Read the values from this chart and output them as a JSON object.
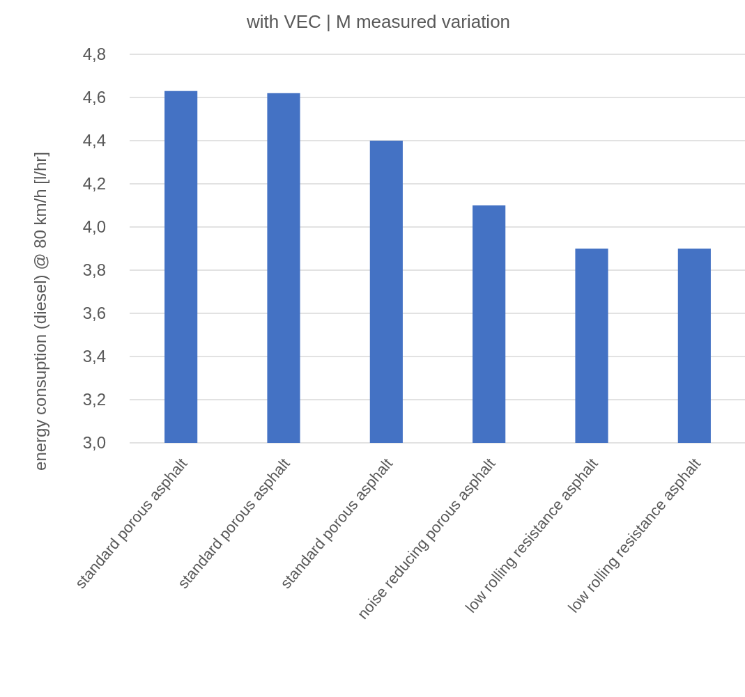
{
  "chart_data": {
    "type": "bar",
    "title": "with VEC | M measured variation",
    "ylabel": "energy consuption (diesel) @ 80 km/h [l/hr]",
    "categories": [
      "standard porous asphalt",
      "standard porous asphalt",
      "standard porous asphalt",
      "noise reducing porous asphalt",
      "low rolling resistance asphalt",
      "low rolling resistance asphalt"
    ],
    "values": [
      4.63,
      4.62,
      4.4,
      4.1,
      3.9,
      3.9
    ],
    "color": "#4472c4",
    "ylim": [
      3.0,
      4.8
    ],
    "yticks": [
      {
        "value": 3.0,
        "label": "3,0"
      },
      {
        "value": 3.2,
        "label": "3,2"
      },
      {
        "value": 3.4,
        "label": "3,4"
      },
      {
        "value": 3.6,
        "label": "3,6"
      },
      {
        "value": 3.8,
        "label": "3,8"
      },
      {
        "value": 4.0,
        "label": "4,0"
      },
      {
        "value": 4.2,
        "label": "4,2"
      },
      {
        "value": 4.4,
        "label": "4,4"
      },
      {
        "value": 4.6,
        "label": "4,6"
      },
      {
        "value": 4.8,
        "label": "4,8"
      }
    ],
    "grid": true
  }
}
